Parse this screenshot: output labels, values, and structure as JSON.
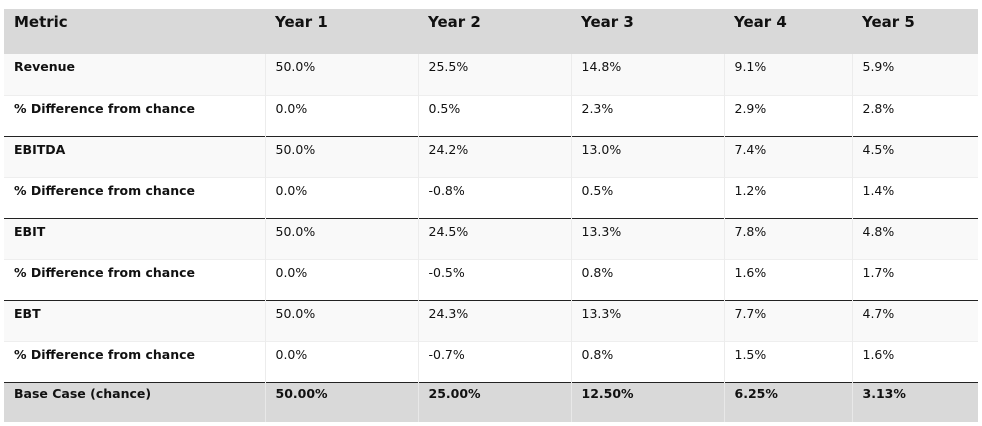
{
  "table": {
    "headers": [
      "Metric",
      "Year 1",
      "Year 2",
      "Year 3",
      "Year 4",
      "Year 5"
    ],
    "rows": [
      {
        "label": "Revenue",
        "values": [
          "50.0%",
          "25.5%",
          "14.8%",
          "9.1%",
          "5.9%"
        ]
      },
      {
        "label": "% Difference from chance",
        "values": [
          "0.0%",
          "0.5%",
          "2.3%",
          "2.9%",
          "2.8%"
        ]
      },
      {
        "label": "EBITDA",
        "values": [
          "50.0%",
          "24.2%",
          "13.0%",
          "7.4%",
          "4.5%"
        ]
      },
      {
        "label": "% Difference from chance",
        "values": [
          "0.0%",
          "-0.8%",
          "0.5%",
          "1.2%",
          "1.4%"
        ]
      },
      {
        "label": "EBIT",
        "values": [
          "50.0%",
          "24.5%",
          "13.3%",
          "7.8%",
          "4.8%"
        ]
      },
      {
        "label": "% Difference from chance",
        "values": [
          "0.0%",
          "-0.5%",
          "0.8%",
          "1.6%",
          "1.7%"
        ]
      },
      {
        "label": "EBT",
        "values": [
          "50.0%",
          "24.3%",
          "13.3%",
          "7.7%",
          "4.7%"
        ]
      },
      {
        "label": "% Difference from chance",
        "values": [
          "0.0%",
          "-0.7%",
          "0.8%",
          "1.5%",
          "1.6%"
        ]
      },
      {
        "label": "Base Case (chance)",
        "values": [
          "50.00%",
          "25.00%",
          "12.50%",
          "6.25%",
          "3.13%"
        ]
      }
    ]
  }
}
